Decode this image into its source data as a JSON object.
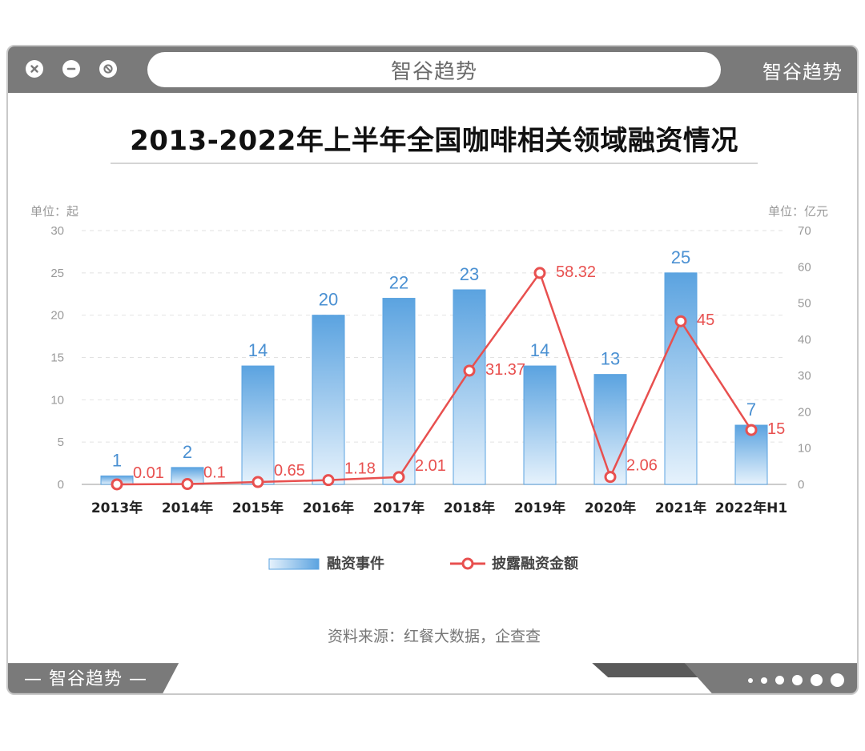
{
  "window": {
    "address_text": "智谷趋势",
    "brand_top": "智谷趋势",
    "brand_bottom": "— 智谷趋势 —"
  },
  "chart_data": {
    "type": "bar",
    "title": "2013-2022年上半年全国咖啡相关领域融资情况",
    "categories": [
      "2013年",
      "2014年",
      "2015年",
      "2016年",
      "2017年",
      "2018年",
      "2019年",
      "2020年",
      "2021年",
      "2022年H1"
    ],
    "left_axis": {
      "unit_label": "单位：起",
      "ylim": [
        0,
        30
      ],
      "ticks": [
        0,
        5,
        10,
        15,
        20,
        25,
        30
      ]
    },
    "right_axis": {
      "unit_label": "单位：亿元",
      "ylim": [
        0,
        70
      ],
      "ticks": [
        0,
        10,
        20,
        30,
        40,
        50,
        60,
        70
      ]
    },
    "series": [
      {
        "name": "融资事件",
        "type": "bar",
        "axis": "left",
        "values": [
          1,
          2,
          14,
          20,
          22,
          23,
          14,
          13,
          25,
          7
        ],
        "value_labels": [
          "1",
          "2",
          "14",
          "20",
          "22",
          "23",
          "14",
          "13",
          "25",
          "7"
        ]
      },
      {
        "name": "披露融资金额",
        "type": "line",
        "axis": "right",
        "values": [
          0.01,
          0.1,
          0.65,
          1.18,
          2.01,
          31.37,
          58.32,
          2.06,
          45,
          15
        ],
        "value_labels": [
          "0.01",
          "0.1",
          "0.65",
          "1.18",
          "2.01",
          "31.37",
          "58.32",
          "2.06",
          "45",
          "15"
        ]
      }
    ],
    "grid": true,
    "legend_position": "bottom",
    "source": "资料来源：红餐大数据，企查查"
  },
  "colors": {
    "bar_top": "#5ba3e0",
    "bar_bottom": "#e6f2fc",
    "bar_label": "#4a90d2",
    "line": "#e8504f",
    "axis_text": "#999999",
    "frame": "#7a7a7a"
  }
}
